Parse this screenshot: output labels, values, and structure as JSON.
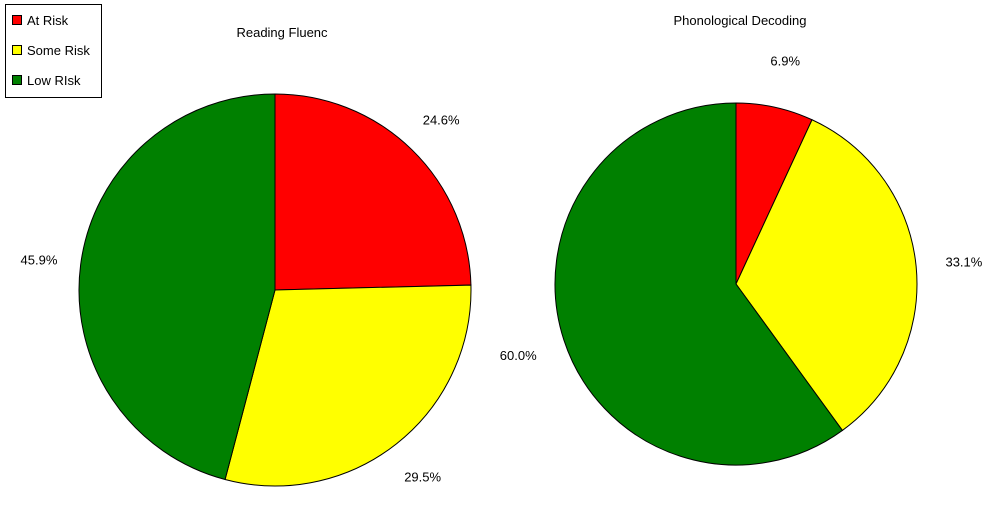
{
  "legend": [
    {
      "label": "At Risk",
      "color": "#ff0000"
    },
    {
      "label": "Some Risk",
      "color": "#ffff00"
    },
    {
      "label": "Low  RIsk",
      "color": "#008000"
    }
  ],
  "chart_data": [
    {
      "type": "pie",
      "title": "Reading Fluenc",
      "labels": [
        "At Risk",
        "Some Risk",
        "Low  RIsk"
      ],
      "values": [
        24.6,
        29.5,
        45.9
      ],
      "value_labels": [
        "24.6%",
        "29.5%",
        "45.9%"
      ],
      "colors": [
        "#ff0000",
        "#ffff00",
        "#008000"
      ],
      "start": "12 o'clock, clockwise"
    },
    {
      "type": "pie",
      "title": "Phonological Decoding",
      "labels": [
        "At Risk",
        "Some Risk",
        "Low  RIsk"
      ],
      "values": [
        6.9,
        33.1,
        60.0
      ],
      "value_labels": [
        "6.9%",
        "33.1%",
        "60.0%"
      ],
      "colors": [
        "#ff0000",
        "#ffff00",
        "#008000"
      ],
      "start": "12 o'clock, clockwise"
    }
  ]
}
